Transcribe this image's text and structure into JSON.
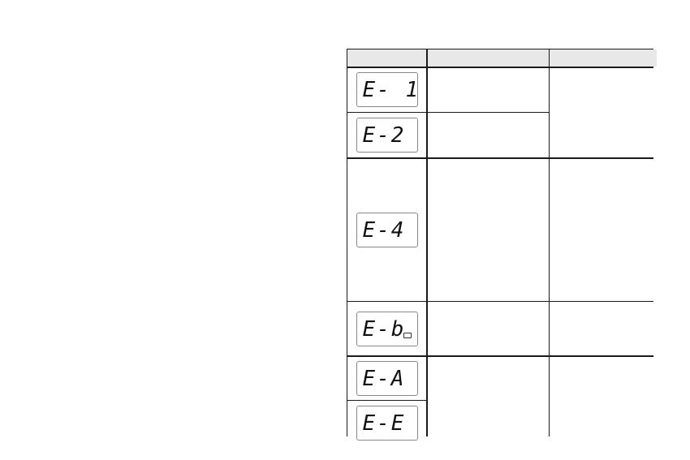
{
  "table": {
    "headers": [
      "",
      "",
      ""
    ],
    "error_codes": [
      "E- 1",
      "E-2",
      "E-4",
      "E-b",
      "E-A",
      "E-E"
    ],
    "icons": {
      "low_battery": "battery-icon"
    }
  }
}
